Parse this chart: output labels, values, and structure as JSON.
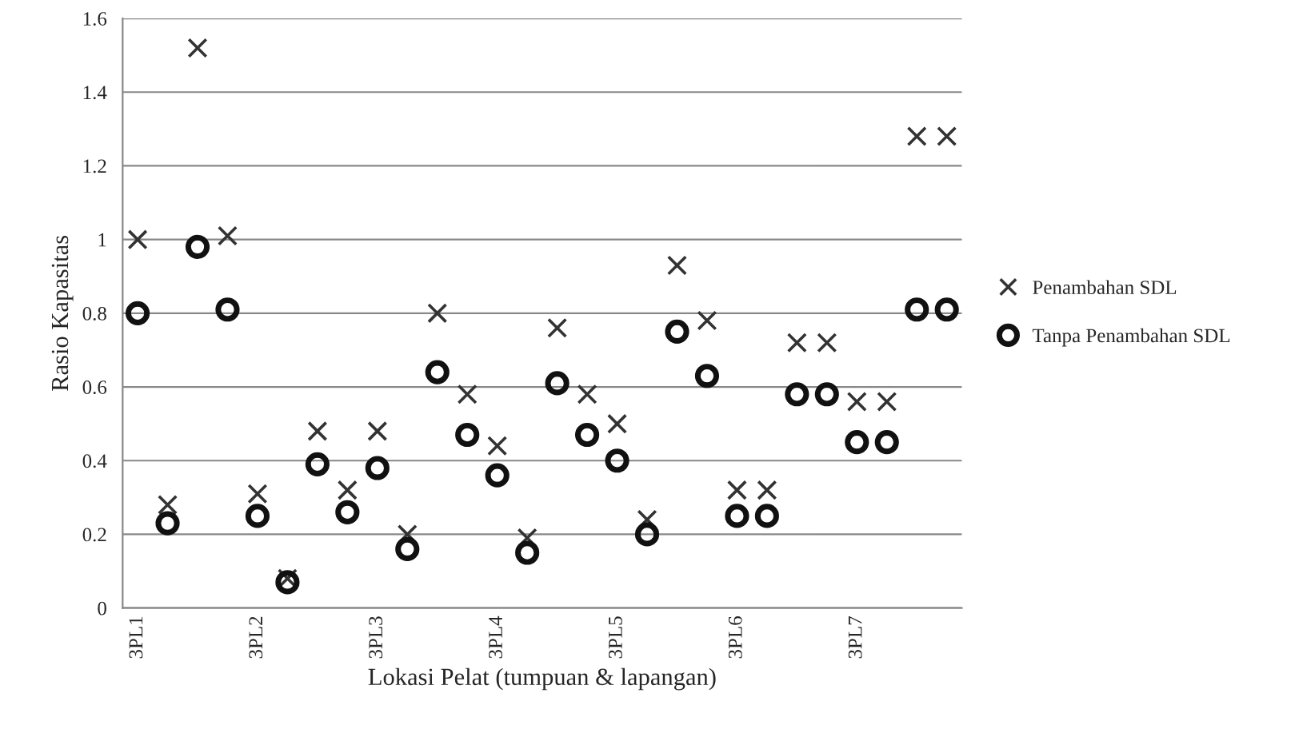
{
  "chart_data": {
    "type": "scatter",
    "xlabel": "Lokasi Pelat (tumpuan & lapangan)",
    "ylabel": "Rasio Kapasitas",
    "categories": [
      "3PL1",
      null,
      null,
      null,
      "3PL2",
      null,
      null,
      null,
      "3PL3",
      null,
      null,
      null,
      "3PL4",
      null,
      null,
      null,
      "3PL5",
      null,
      null,
      null,
      "3PL6",
      null,
      null,
      null,
      "3PL7",
      null,
      null,
      null
    ],
    "series": [
      {
        "name": "Penambahan SDL",
        "color": "#333333",
        "marker": "cross",
        "values": [
          1.0,
          0.28,
          1.52,
          1.01,
          0.31,
          0.08,
          0.48,
          0.32,
          0.48,
          0.2,
          0.8,
          0.58,
          0.44,
          0.19,
          0.76,
          0.58,
          0.5,
          0.24,
          0.93,
          0.78,
          0.32,
          0.32,
          0.72,
          0.72,
          0.56,
          0.56,
          1.28,
          1.28
        ]
      },
      {
        "name": "Tanpa Penambahan SDL",
        "color": "#111111",
        "marker": "circle",
        "values": [
          0.8,
          0.23,
          0.98,
          0.81,
          0.25,
          0.07,
          0.39,
          0.26,
          0.38,
          0.16,
          0.64,
          0.47,
          0.36,
          0.15,
          0.61,
          0.47,
          0.4,
          0.2,
          0.75,
          0.63,
          0.25,
          0.25,
          0.58,
          0.58,
          0.45,
          0.45,
          0.81,
          0.81
        ]
      }
    ],
    "ylim": [
      0,
      1.6
    ],
    "yticks": [
      0,
      {
        "value": 0.2,
        "label": "0.2"
      },
      {
        "value": 0.4,
        "label": "0.4"
      },
      {
        "value": 0.6,
        "label": "0.6"
      },
      {
        "value": 0.8,
        "label": "0.8"
      },
      1,
      {
        "value": 1.2,
        "label": "1.2"
      },
      {
        "value": 1.4,
        "label": "1.4"
      },
      {
        "value": 1.6,
        "label": "1.6"
      }
    ],
    "grid": "y",
    "legend": "right"
  }
}
